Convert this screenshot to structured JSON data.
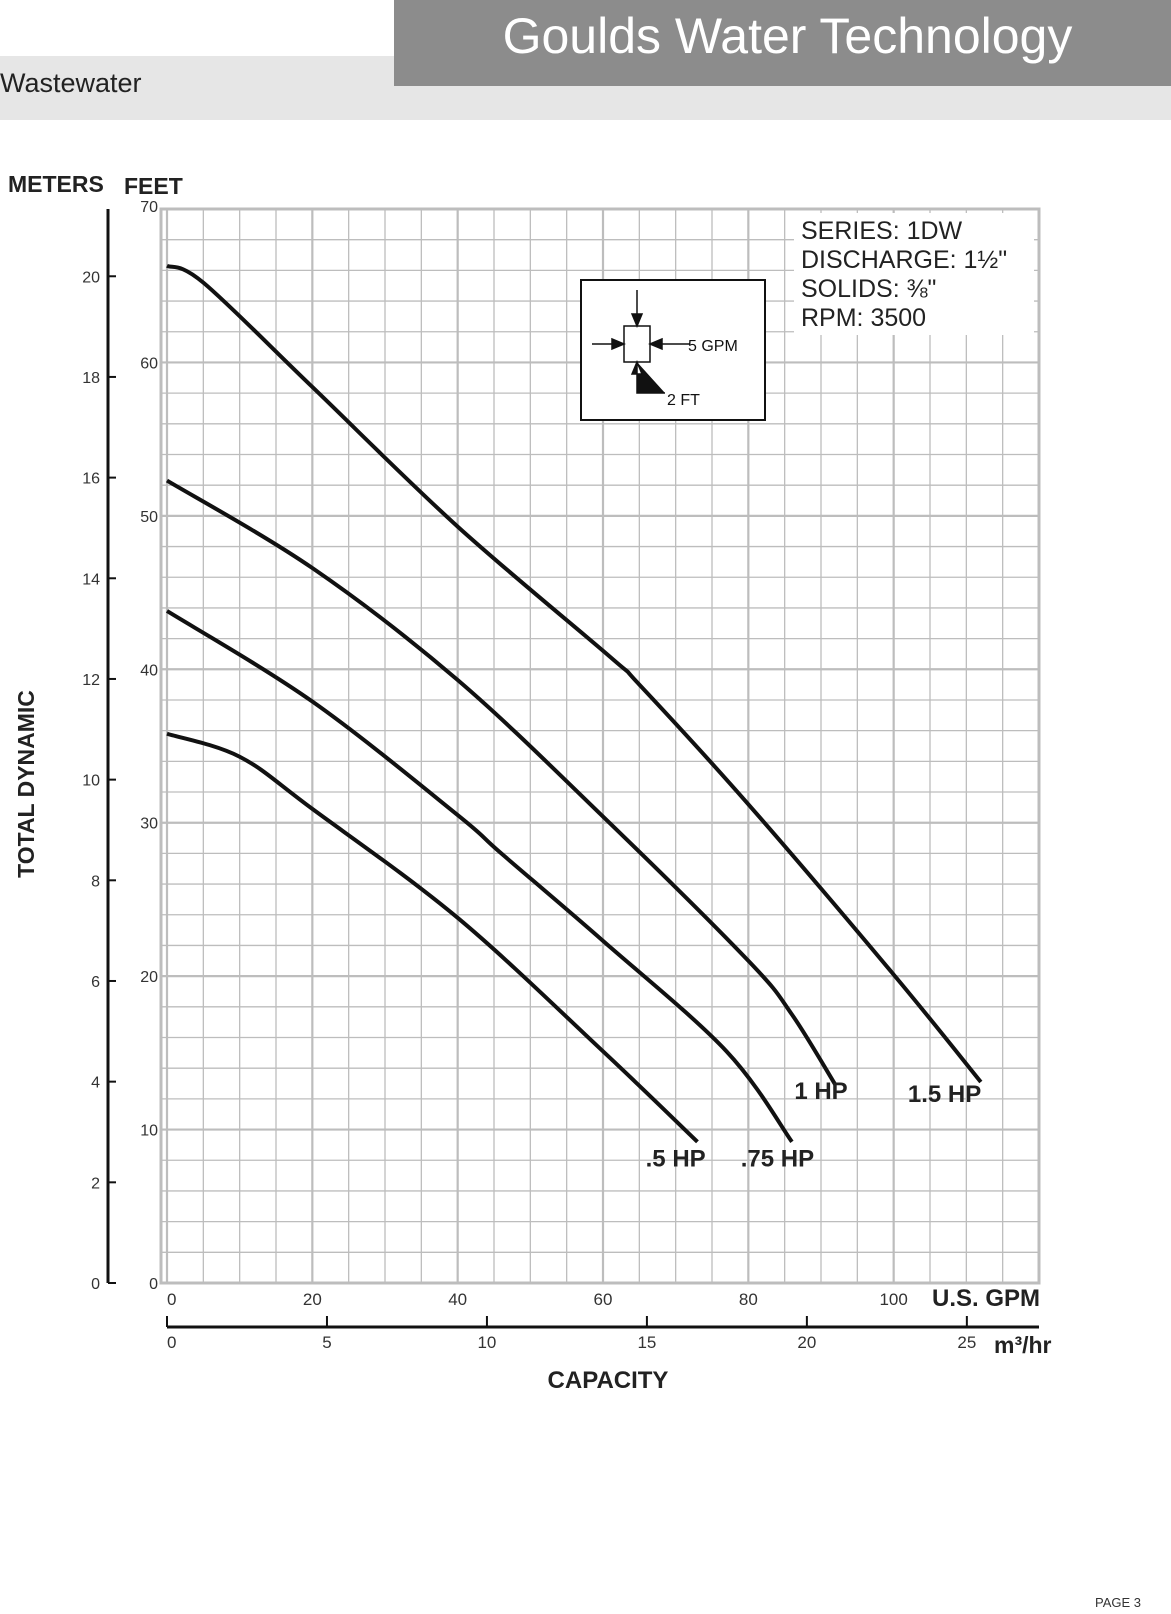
{
  "header": {
    "title": "Goulds Water Technology",
    "section": "Wastewater"
  },
  "footer": {
    "page": "PAGE 3"
  },
  "chart_data": {
    "type": "line",
    "xlabel": "CAPACITY",
    "x_unit": "U.S. GPM",
    "x2_unit": "m³/hr",
    "ylabel": "TOTAL DYNAMIC",
    "y_unit": "FEET",
    "y2_unit": "METERS",
    "xlim": [
      0,
      120
    ],
    "ylim": [
      0,
      70
    ],
    "x_ticks": [
      0,
      20,
      40,
      60,
      80,
      100
    ],
    "y_ticks": [
      0,
      10,
      20,
      30,
      40,
      50,
      60,
      70
    ],
    "x2_ticks": [
      0,
      5,
      10,
      15,
      20,
      25
    ],
    "y2_ticks": [
      0,
      2,
      4,
      6,
      8,
      10,
      12,
      14,
      16,
      18,
      20
    ],
    "grid": true,
    "info": [
      "SERIES: 1DW",
      "DISCHARGE: 1½\"",
      "SOLIDS: ⅜\"",
      "RPM: 3500"
    ],
    "grid_legend": {
      "horizontal": "5 GPM",
      "vertical": "2 FT"
    },
    "series": [
      {
        "name": "1.5 HP",
        "x": [
          0,
          5,
          20,
          40,
          61,
          65,
          80,
          100,
          112
        ],
        "y": [
          66.3,
          65.2,
          58.4,
          49.3,
          40.8,
          39,
          31.2,
          20.1,
          13.1
        ],
        "label_at": [
          107,
          11.8
        ]
      },
      {
        "name": "1 HP",
        "x": [
          0,
          20,
          40,
          60,
          80,
          86,
          92
        ],
        "y": [
          52.3,
          46.6,
          39.3,
          30.4,
          21,
          17.5,
          12.9
        ],
        "label_at": [
          90,
          12
        ]
      },
      {
        "name": ".75 HP",
        "x": [
          0,
          20,
          40,
          46,
          60,
          77,
          86
        ],
        "y": [
          43.8,
          37.9,
          30.5,
          28,
          22.3,
          15.1,
          9.2
        ],
        "label_at": [
          84,
          7.6
        ]
      },
      {
        "name": ".5 HP",
        "x": [
          0,
          10,
          20,
          40,
          60,
          73
        ],
        "y": [
          35.8,
          34.3,
          30.9,
          23.8,
          15.1,
          9.2
        ],
        "label_at": [
          70,
          7.6
        ]
      }
    ]
  }
}
